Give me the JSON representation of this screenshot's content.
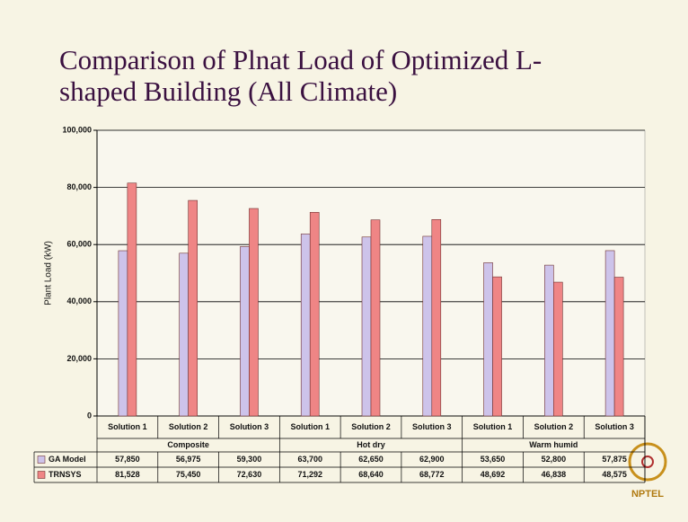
{
  "chart_data": {
    "type": "bar",
    "title": [
      "Comparison of Plnat Load of Optimized L-",
      "shaped Building (All Climate)"
    ],
    "y_label": "Plant Load (kW)",
    "categories": [
      "Solution 1",
      "Solution 2",
      "Solution 3",
      "Solution 1",
      "Solution 2",
      "Solution 3",
      "Solution 1",
      "Solution 2",
      "Solution 3"
    ],
    "groups": [
      "Composite",
      "Hot dry",
      "Warm humid"
    ],
    "series": [
      {
        "name": "GA Model",
        "color": "#cdc3ea",
        "values": [
          57850,
          56975,
          59300,
          63700,
          62650,
          62900,
          53650,
          52800,
          57875
        ],
        "value_labels": [
          "57,850",
          "56,975",
          "59,300",
          "63,700",
          "62,650",
          "62,900",
          "53,650",
          "52,800",
          "57,875"
        ]
      },
      {
        "name": "TRNSYS",
        "color": "#ef8585",
        "values": [
          81528,
          75450,
          72630,
          71292,
          68640,
          68772,
          48692,
          46838,
          48575
        ],
        "value_labels": [
          "81,528",
          "75,450",
          "72,630",
          "71,292",
          "68,640",
          "68,772",
          "48,692",
          "46,838",
          "48,575"
        ]
      }
    ],
    "ylim": [
      0,
      100000
    ],
    "yticks": [
      0,
      {
        "value": 20000,
        "label": "20,000"
      },
      {
        "value": 40000,
        "label": "40,000"
      },
      {
        "value": 60000,
        "label": "60,000"
      },
      {
        "value": 80000,
        "label": "80,000"
      },
      {
        "value": 100000,
        "label": "100,000"
      }
    ],
    "grid": true
  },
  "logo": "NPTEL"
}
